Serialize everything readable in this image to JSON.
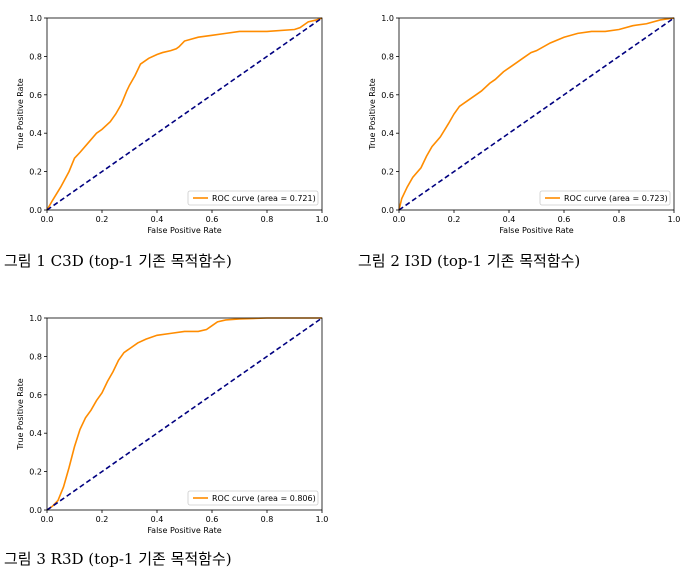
{
  "colors": {
    "roc": "#ff8c00",
    "diagonal": "#000080",
    "frame": "#000000"
  },
  "captions": [
    "그림 1 C3D (top-1 기존 목적함수)",
    "그림 2 I3D (top-1 기존 목적함수)",
    "그림 3 R3D (top-1 기존 목적함수)"
  ],
  "chart_data": [
    {
      "type": "line",
      "xlabel": "False Positive Rate",
      "ylabel": "True Positive Rate",
      "xlim": [
        0,
        1
      ],
      "ylim": [
        0,
        1
      ],
      "xticks": [
        "0.0",
        "0.2",
        "0.4",
        "0.6",
        "0.8",
        "1.0"
      ],
      "yticks": [
        "0.0",
        "0.2",
        "0.4",
        "0.6",
        "0.8",
        "1.0"
      ],
      "legend": {
        "location": "lower right",
        "entries": [
          "ROC curve (area = 0.721)"
        ]
      },
      "grid": false,
      "series": [
        {
          "name": "ROC curve (area = 0.721)",
          "style": "solid",
          "x": [
            0,
            0.02,
            0.05,
            0.08,
            0.1,
            0.12,
            0.15,
            0.18,
            0.2,
            0.23,
            0.25,
            0.27,
            0.29,
            0.3,
            0.32,
            0.34,
            0.37,
            0.4,
            0.42,
            0.45,
            0.47,
            0.48,
            0.5,
            0.55,
            0.6,
            0.65,
            0.7,
            0.8,
            0.9,
            0.92,
            0.95,
            0.98,
            1.0
          ],
          "y": [
            0,
            0.05,
            0.12,
            0.2,
            0.27,
            0.3,
            0.35,
            0.4,
            0.42,
            0.46,
            0.5,
            0.55,
            0.62,
            0.65,
            0.7,
            0.76,
            0.79,
            0.81,
            0.82,
            0.83,
            0.84,
            0.85,
            0.88,
            0.9,
            0.91,
            0.92,
            0.93,
            0.93,
            0.94,
            0.95,
            0.98,
            0.99,
            1.0
          ]
        },
        {
          "name": "",
          "style": "dashed",
          "x": [
            0,
            1
          ],
          "y": [
            0,
            1
          ]
        }
      ]
    },
    {
      "type": "line",
      "xlabel": "False Positive Rate",
      "ylabel": "True Positive Rate",
      "xlim": [
        0,
        1
      ],
      "ylim": [
        0,
        1
      ],
      "xticks": [
        "0.0",
        "0.2",
        "0.4",
        "0.6",
        "0.8",
        "1.0"
      ],
      "yticks": [
        "0.0",
        "0.2",
        "0.4",
        "0.6",
        "0.8",
        "1.0"
      ],
      "legend": {
        "location": "lower right",
        "entries": [
          "ROC curve (area = 0.723)"
        ]
      },
      "grid": false,
      "series": [
        {
          "name": "ROC curve (area = 0.723)",
          "style": "solid",
          "x": [
            0,
            0.01,
            0.03,
            0.05,
            0.08,
            0.1,
            0.12,
            0.15,
            0.18,
            0.2,
            0.22,
            0.25,
            0.28,
            0.3,
            0.33,
            0.35,
            0.38,
            0.4,
            0.43,
            0.45,
            0.48,
            0.5,
            0.55,
            0.6,
            0.65,
            0.7,
            0.75,
            0.8,
            0.85,
            0.9,
            0.95,
            1.0
          ],
          "y": [
            0,
            0.06,
            0.12,
            0.17,
            0.22,
            0.28,
            0.33,
            0.38,
            0.45,
            0.5,
            0.54,
            0.57,
            0.6,
            0.62,
            0.66,
            0.68,
            0.72,
            0.74,
            0.77,
            0.79,
            0.82,
            0.83,
            0.87,
            0.9,
            0.92,
            0.93,
            0.93,
            0.94,
            0.96,
            0.97,
            0.99,
            1.0
          ]
        },
        {
          "name": "",
          "style": "dashed",
          "x": [
            0,
            1
          ],
          "y": [
            0,
            1
          ]
        }
      ]
    },
    {
      "type": "line",
      "xlabel": "False Positive Rate",
      "ylabel": "True Positive Rate",
      "xlim": [
        0,
        1
      ],
      "ylim": [
        0,
        1
      ],
      "xticks": [
        "0.0",
        "0.2",
        "0.4",
        "0.6",
        "0.8",
        "1.0"
      ],
      "yticks": [
        "0.0",
        "0.2",
        "0.4",
        "0.6",
        "0.8",
        "1.0"
      ],
      "legend": {
        "location": "lower right",
        "entries": [
          "ROC curve (area = 0.806)"
        ]
      },
      "grid": false,
      "series": [
        {
          "name": "ROC curve (area = 0.806)",
          "style": "solid",
          "x": [
            0,
            0.02,
            0.04,
            0.06,
            0.08,
            0.1,
            0.12,
            0.14,
            0.16,
            0.18,
            0.2,
            0.22,
            0.24,
            0.26,
            0.28,
            0.3,
            0.33,
            0.36,
            0.4,
            0.45,
            0.5,
            0.55,
            0.58,
            0.6,
            0.62,
            0.65,
            0.7,
            0.8,
            0.9,
            1.0
          ],
          "y": [
            0,
            0.02,
            0.05,
            0.12,
            0.22,
            0.33,
            0.42,
            0.48,
            0.52,
            0.57,
            0.61,
            0.67,
            0.72,
            0.78,
            0.82,
            0.84,
            0.87,
            0.89,
            0.91,
            0.92,
            0.93,
            0.93,
            0.94,
            0.96,
            0.98,
            0.99,
            0.995,
            1.0,
            1.0,
            1.0
          ]
        },
        {
          "name": "",
          "style": "dashed",
          "x": [
            0,
            1
          ],
          "y": [
            0,
            1
          ]
        }
      ]
    }
  ]
}
